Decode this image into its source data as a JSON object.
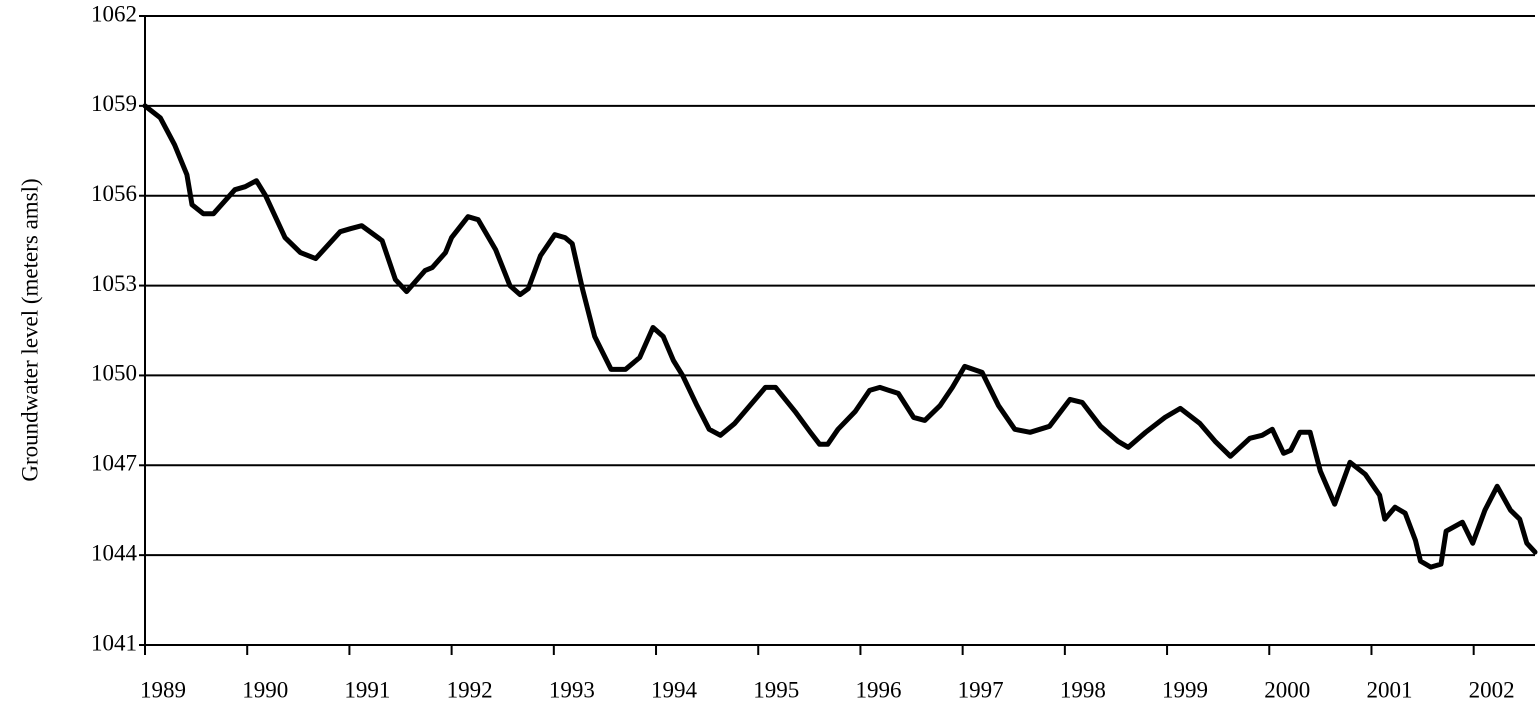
{
  "chart_data": {
    "type": "line",
    "y_label": "Groundwater level (meters amsl)",
    "xlim": [
      1989,
      2002.6
    ],
    "xticks": [
      1989,
      1990,
      1991,
      1992,
      1993,
      1994,
      1995,
      1996,
      1997,
      1998,
      1999,
      2000,
      2001,
      2002
    ],
    "ylim": [
      1041,
      1062
    ],
    "yticks": [
      1041,
      1044,
      1047,
      1050,
      1053,
      1056,
      1059,
      1062
    ],
    "grid": true,
    "x": [
      1989.0,
      1989.15,
      1989.29,
      1989.41,
      1989.46,
      1989.57,
      1989.67,
      1989.88,
      1989.98,
      1990.09,
      1990.18,
      1990.37,
      1990.52,
      1990.67,
      1990.91,
      1991.01,
      1991.12,
      1991.32,
      1991.45,
      1991.56,
      1991.74,
      1991.81,
      1991.94,
      1992.0,
      1992.16,
      1992.26,
      1992.43,
      1992.57,
      1992.67,
      1992.75,
      1992.87,
      1993.01,
      1993.11,
      1993.18,
      1993.28,
      1993.4,
      1993.56,
      1993.7,
      1993.84,
      1993.97,
      1994.07,
      1994.17,
      1994.26,
      1994.4,
      1994.52,
      1994.63,
      1994.77,
      1994.97,
      1995.07,
      1995.17,
      1995.36,
      1995.51,
      1995.6,
      1995.68,
      1995.78,
      1995.95,
      1996.09,
      1996.19,
      1996.37,
      1996.52,
      1996.63,
      1996.78,
      1996.9,
      1997.02,
      1997.19,
      1997.35,
      1997.51,
      1997.66,
      1997.85,
      1998.05,
      1998.17,
      1998.35,
      1998.52,
      1998.62,
      1998.79,
      1998.98,
      1999.13,
      1999.32,
      1999.47,
      1999.62,
      1999.81,
      1999.93,
      2000.03,
      2000.14,
      2000.21,
      2000.3,
      2000.4,
      2000.5,
      2000.64,
      2000.79,
      2000.94,
      2001.08,
      2001.13,
      2001.23,
      2001.33,
      2001.43,
      2001.48,
      2001.58,
      2001.68,
      2001.73,
      2001.89,
      2001.99,
      2002.11,
      2002.23,
      2002.36,
      2002.45,
      2002.52,
      2002.6
    ],
    "series": [
      {
        "name": "Groundwater level",
        "color": "#000000",
        "values": [
          1059.0,
          1058.6,
          1057.7,
          1056.7,
          1055.7,
          1055.4,
          1055.4,
          1056.2,
          1056.3,
          1056.5,
          1056.0,
          1054.6,
          1054.1,
          1053.9,
          1054.8,
          1054.9,
          1055.0,
          1054.5,
          1053.2,
          1052.8,
          1053.5,
          1053.6,
          1054.1,
          1054.6,
          1055.3,
          1055.2,
          1054.2,
          1053.0,
          1052.7,
          1052.9,
          1054.0,
          1054.7,
          1054.6,
          1054.4,
          1052.9,
          1051.3,
          1050.2,
          1050.2,
          1050.6,
          1051.6,
          1051.3,
          1050.5,
          1050.0,
          1049.0,
          1048.2,
          1048.0,
          1048.4,
          1049.2,
          1049.6,
          1049.6,
          1048.8,
          1048.1,
          1047.7,
          1047.7,
          1048.2,
          1048.8,
          1049.5,
          1049.6,
          1049.4,
          1048.6,
          1048.5,
          1049.0,
          1049.6,
          1050.3,
          1050.1,
          1049.0,
          1048.2,
          1048.1,
          1048.3,
          1049.2,
          1049.1,
          1048.3,
          1047.8,
          1047.6,
          1048.1,
          1048.6,
          1048.9,
          1048.4,
          1047.8,
          1047.3,
          1047.9,
          1048.0,
          1048.2,
          1047.4,
          1047.5,
          1048.1,
          1048.1,
          1046.8,
          1045.7,
          1047.1,
          1046.7,
          1046.0,
          1045.2,
          1045.6,
          1045.4,
          1044.5,
          1043.8,
          1043.6,
          1043.7,
          1044.8,
          1045.1,
          1044.4,
          1045.5,
          1046.3,
          1045.5,
          1045.2,
          1044.4,
          1044.1
        ]
      }
    ]
  }
}
